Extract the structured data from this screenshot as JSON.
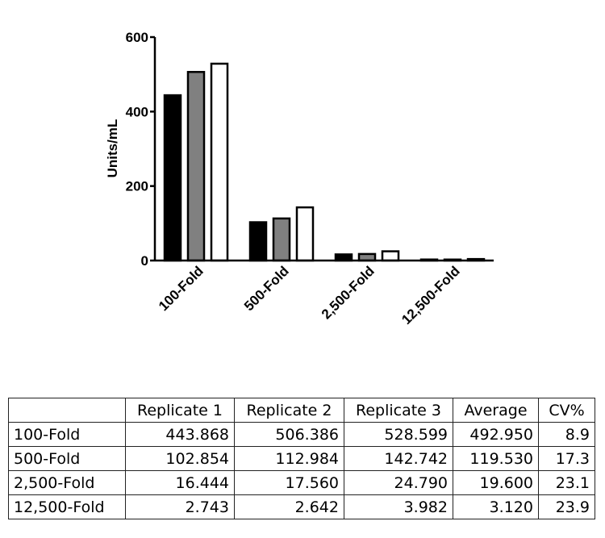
{
  "chart_data": {
    "type": "bar",
    "categories": [
      "100-Fold",
      "500-Fold",
      "2,500-Fold",
      "12,500-Fold"
    ],
    "series": [
      {
        "values": [
          443.868,
          102.854,
          16.444,
          2.743
        ],
        "color": "#000000"
      },
      {
        "values": [
          506.386,
          112.984,
          17.56,
          2.642
        ],
        "color": "#808080"
      },
      {
        "values": [
          528.599,
          142.742,
          24.79,
          3.982
        ],
        "color": "#ffffff"
      }
    ],
    "ylabel": "Units/mL",
    "ylim": [
      0,
      600
    ],
    "yticks": [
      "0",
      "200",
      "400",
      "600"
    ],
    "grid": false
  },
  "table": {
    "headers": [
      "",
      "Replicate 1",
      "Replicate 2",
      "Replicate 3",
      "Average",
      "CV%"
    ],
    "rows": [
      [
        "100-Fold",
        "443.868",
        "506.386",
        "528.599",
        "492.950",
        "8.9"
      ],
      [
        "500-Fold",
        "102.854",
        "112.984",
        "142.742",
        "119.530",
        "17.3"
      ],
      [
        "2,500-Fold",
        "16.444",
        "17.560",
        "24.790",
        "19.600",
        "23.1"
      ],
      [
        "12,500-Fold",
        "2.743",
        "2.642",
        "3.982",
        "3.120",
        "23.9"
      ]
    ]
  }
}
